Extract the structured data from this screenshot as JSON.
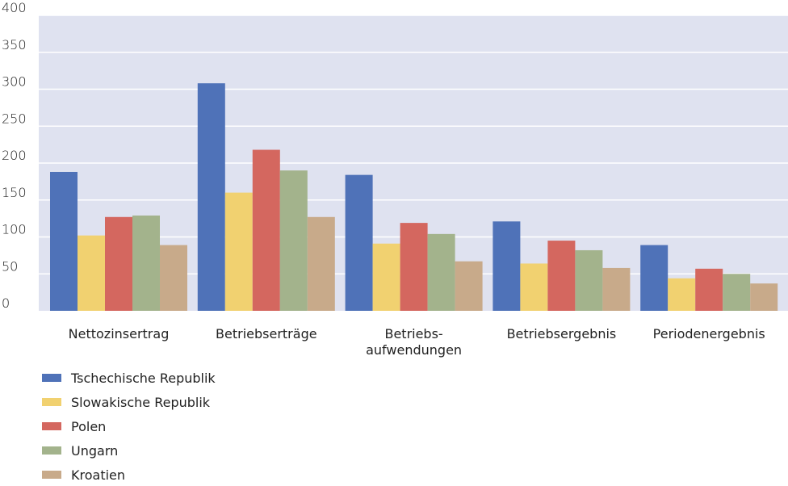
{
  "chart_data": {
    "type": "bar",
    "title": "",
    "xlabel": "",
    "ylabel": "",
    "ylim": [
      0,
      400
    ],
    "yticks": [
      0,
      50,
      100,
      150,
      200,
      250,
      300,
      350,
      400
    ],
    "grid": true,
    "legend_position": "bottom-left",
    "categories": [
      [
        "Nettozinsertrag"
      ],
      [
        "Betriebserträge"
      ],
      [
        "Betriebs-",
        "aufwendungen"
      ],
      [
        "Betriebsergebnis"
      ],
      [
        "Periodenergebnis"
      ]
    ],
    "series": [
      {
        "name": "Tschechische Republik",
        "color": "#4f72b8",
        "values": [
          188,
          308,
          184,
          121,
          89
        ]
      },
      {
        "name": "Slowakische Republik",
        "color": "#f1d170",
        "values": [
          102,
          160,
          91,
          64,
          44
        ]
      },
      {
        "name": "Polen",
        "color": "#d4675f",
        "values": [
          127,
          218,
          119,
          95,
          57
        ]
      },
      {
        "name": "Ungarn",
        "color": "#a3b38c",
        "values": [
          129,
          190,
          104,
          82,
          50
        ]
      },
      {
        "name": "Kroatien",
        "color": "#c8aa8a",
        "values": [
          89,
          127,
          67,
          58,
          37
        ]
      }
    ],
    "plot_background": "#dfe2f0",
    "grid_color": "#ffffff"
  }
}
